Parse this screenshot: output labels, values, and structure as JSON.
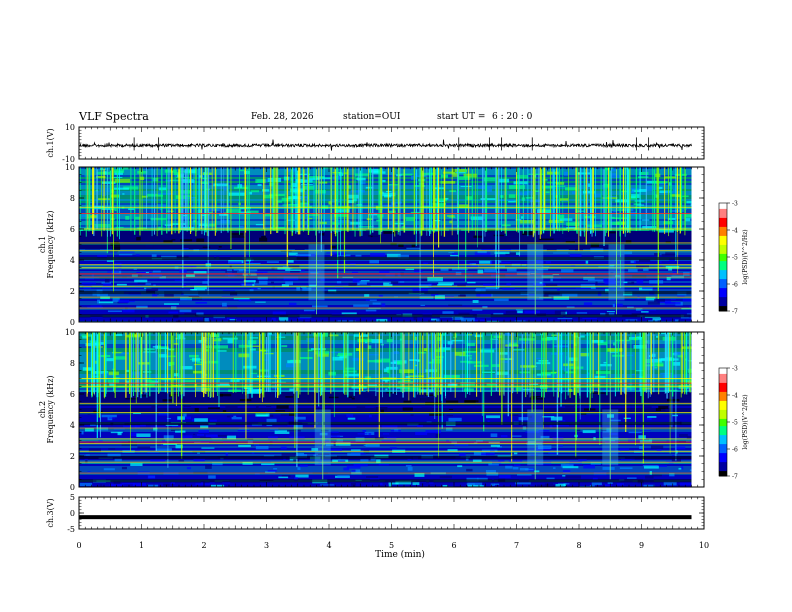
{
  "header": {
    "title": "VLF Spectra",
    "date": "Feb. 28, 2026",
    "station": "station=OUI",
    "start_label": "start UT =",
    "start_time": "6 : 20 : 0"
  },
  "chart_data": [
    {
      "type": "line",
      "name": "ch1-waveform",
      "ylabel": "ch.1(V)",
      "ylim": [
        -10,
        10
      ],
      "yticks": [
        "10",
        "-10"
      ],
      "xlim": [
        0,
        10
      ],
      "baseline": -1.5,
      "color": "#000000"
    },
    {
      "type": "heatmap",
      "name": "ch1-spectrogram",
      "ylabel": "ch.1",
      "ylabel2": "Frequency (kHz)",
      "ylim": [
        0,
        10
      ],
      "yticks": [
        "0",
        "2",
        "4",
        "6",
        "8",
        "10"
      ],
      "xlim": [
        0,
        10
      ],
      "colorbar": {
        "label": "log(PSD)(V^2/Hz)",
        "range": [
          -7,
          -3
        ],
        "ticks": [
          "-3",
          "-4",
          "-5",
          "-6",
          "-7"
        ]
      },
      "tones_khz": [
        0.9,
        1.6,
        2.3,
        2.9,
        3.1,
        3.5,
        3.7,
        4.6,
        5.1,
        6.0,
        7.4
      ],
      "red_tones_khz": [
        3.1,
        7.0
      ],
      "quiet_band_khz": [
        4.8,
        6.0
      ],
      "active_band_khz": [
        6.0,
        10.0
      ],
      "burst_times_min": [
        3.8,
        7.3,
        8.6
      ]
    },
    {
      "type": "heatmap",
      "name": "ch2-spectrogram",
      "ylabel": "ch.2",
      "ylabel2": "Frequency (kHz)",
      "ylim": [
        0,
        10
      ],
      "yticks": [
        "0",
        "2",
        "4",
        "6",
        "8",
        "10"
      ],
      "xlim": [
        0,
        10
      ],
      "colorbar": {
        "label": "log(PSD)(V^2/Hz)",
        "range": [
          -7,
          -3
        ],
        "ticks": [
          "-3",
          "-4",
          "-5",
          "-6",
          "-7"
        ]
      },
      "tones_khz": [
        0.9,
        1.6,
        2.3,
        2.8,
        3.1,
        3.8,
        4.8,
        5.4,
        6.5,
        7.0
      ],
      "red_tones_khz": [
        2.9,
        6.7
      ],
      "quiet_band_khz": [
        4.8,
        6.2
      ],
      "active_band_khz": [
        6.2,
        10.0
      ],
      "burst_times_min": [
        3.9,
        7.3,
        8.5
      ]
    },
    {
      "type": "line",
      "name": "ch3-waveform",
      "ylabel": "ch.3(V)",
      "ylim": [
        -5,
        5
      ],
      "yticks": [
        "5",
        "0",
        "-5"
      ],
      "xlim": [
        0,
        10
      ],
      "baseline": -1.3,
      "color": "#000000"
    }
  ],
  "xaxis": {
    "label": "Time (min)",
    "ticks": [
      "0",
      "1",
      "2",
      "3",
      "4",
      "5",
      "6",
      "7",
      "8",
      "9",
      "10"
    ],
    "data_end_min": 9.8
  },
  "colormap": [
    "#000000",
    "#000080",
    "#0000ff",
    "#0080ff",
    "#00ffff",
    "#00ff80",
    "#80ff00",
    "#ffff00",
    "#ff8000",
    "#ff0000",
    "#ff8080",
    "#ffffff"
  ]
}
